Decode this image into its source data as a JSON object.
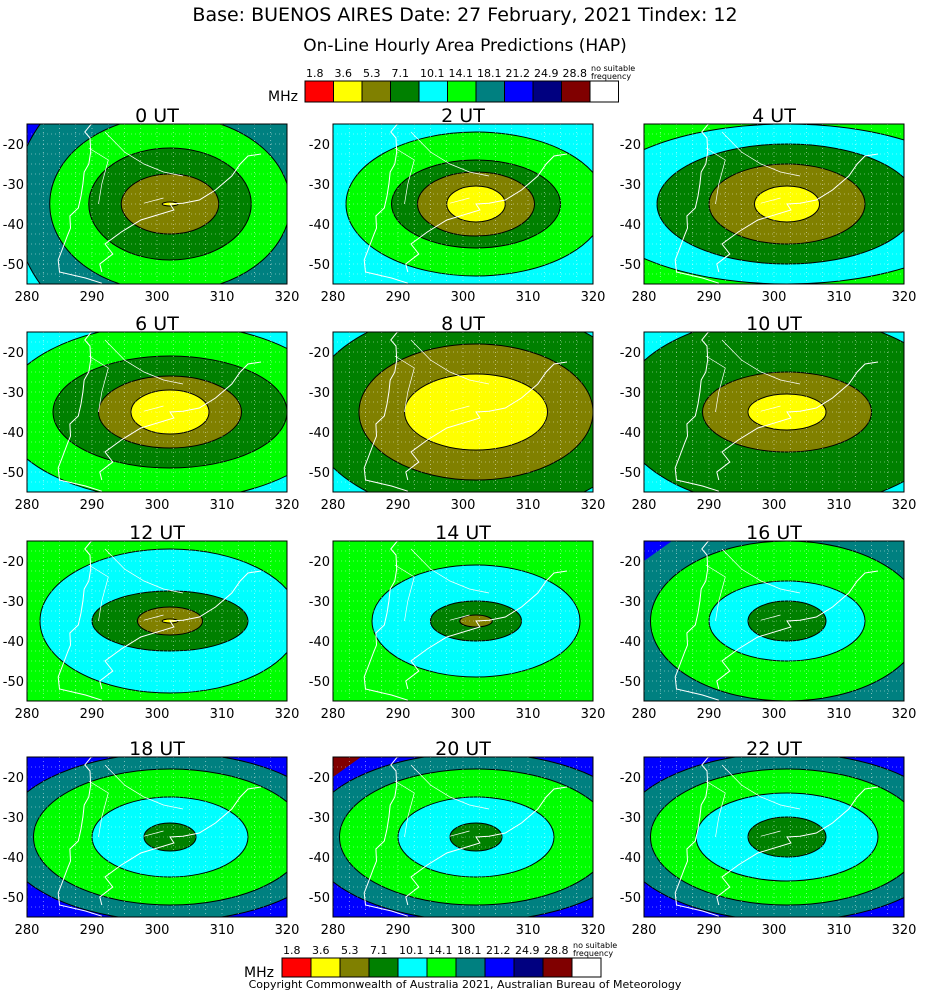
{
  "header": {
    "title": "Base: BUENOS AIRES Date: 27 February, 2021 Tindex: 12",
    "subtitle": "On-Line Hourly Area Predictions (HAP)"
  },
  "legend": {
    "unit": "MHz",
    "values": [
      "1.8",
      "3.6",
      "5.3",
      "7.1",
      "10.1",
      "14.1",
      "18.1",
      "21.2",
      "24.9",
      "28.8"
    ],
    "no_freq_line1": "no suitable",
    "no_freq_line2": "frequency",
    "colors": [
      "#ff0000",
      "#ffff00",
      "#808000",
      "#008000",
      "#00ffff",
      "#00ff00",
      "#008080",
      "#0000ff",
      "#000080",
      "#800000",
      "#ffffff"
    ]
  },
  "footer": {
    "copyright": "Copyright Commonwealth of Australia 2021, Australian Bureau of Meteorology"
  },
  "chart_data": {
    "type": "heatmap",
    "x_ticks": [
      280,
      290,
      300,
      310,
      320
    ],
    "y_ticks": [
      -20,
      -30,
      -40,
      -50
    ],
    "xlim": [
      280,
      320
    ],
    "ylim": [
      -55,
      -15
    ],
    "grid": true,
    "panels": [
      {
        "title": "0 UT",
        "background": "#00ffff",
        "corner": "#0000ff",
        "contours": [
          [
            24,
            36,
            "#008080"
          ],
          [
            18.5,
            22,
            "#00ff00"
          ],
          [
            12.5,
            14,
            "#008000"
          ],
          [
            7.5,
            7.5,
            "#808000"
          ],
          [
            1.2,
            0.5,
            "#ffff00"
          ]
        ]
      },
      {
        "title": "2 UT",
        "background": "#00ffff",
        "corner": null,
        "contours": [
          [
            20,
            18,
            "#00ff00"
          ],
          [
            13,
            11,
            "#008000"
          ],
          [
            9,
            8,
            "#808000"
          ],
          [
            4.5,
            4.5,
            "#ffff00"
          ]
        ]
      },
      {
        "title": "4 UT",
        "background": "#00ff00",
        "corner": null,
        "contours": [
          [
            30,
            20,
            "#00ffff"
          ],
          [
            20,
            15,
            "#008000"
          ],
          [
            12,
            10,
            "#808000"
          ],
          [
            5,
            4.5,
            "#ffff00"
          ]
        ]
      },
      {
        "title": "6 UT",
        "background": "#00ffff",
        "corner": null,
        "contours": [
          [
            26,
            22,
            "#00ff00"
          ],
          [
            18,
            14,
            "#008000"
          ],
          [
            11,
            9,
            "#808000"
          ],
          [
            6,
            5.5,
            "#ffff00"
          ]
        ]
      },
      {
        "title": "8 UT",
        "background": "#00ffff",
        "corner": null,
        "contours": [
          [
            26,
            26,
            "#008000"
          ],
          [
            18,
            17,
            "#808000"
          ],
          [
            11,
            9.5,
            "#ffff00"
          ]
        ]
      },
      {
        "title": "10 UT",
        "background": "#00ffff",
        "corner": null,
        "contours": [
          [
            26,
            24,
            "#008000"
          ],
          [
            13,
            10,
            "#808000"
          ],
          [
            6,
            4.5,
            "#ffff00"
          ]
        ]
      },
      {
        "title": "12 UT",
        "background": "#00ff00",
        "corner": null,
        "contours": [
          [
            20,
            18,
            "#00ffff"
          ],
          [
            12,
            7.5,
            "#008000"
          ],
          [
            5,
            3.5,
            "#808000"
          ],
          [
            1.2,
            0.5,
            "#ffff00"
          ]
        ]
      },
      {
        "title": "14 UT",
        "background": "#00ff00",
        "corner": null,
        "contours": [
          [
            16,
            14,
            "#00ffff"
          ],
          [
            7,
            5,
            "#008000"
          ],
          [
            2.5,
            1.5,
            "#808000"
          ]
        ]
      },
      {
        "title": "16 UT",
        "background": "#008080",
        "corner": "#0000ff",
        "contours": [
          [
            21,
            20,
            "#00ff00"
          ],
          [
            12,
            10,
            "#00ffff"
          ],
          [
            6,
            5,
            "#008000"
          ]
        ]
      },
      {
        "title": "18 UT",
        "background": "#0000ff",
        "corner": null,
        "contours": [
          [
            26,
            21,
            "#008080"
          ],
          [
            21,
            17,
            "#00ff00"
          ],
          [
            12,
            10,
            "#00ffff"
          ],
          [
            4,
            3.5,
            "#008000"
          ]
        ]
      },
      {
        "title": "20 UT",
        "background": "#0000ff",
        "corner": "#800000",
        "contours": [
          [
            26,
            21,
            "#008080"
          ],
          [
            21,
            17,
            "#00ff00"
          ],
          [
            12,
            10,
            "#00ffff"
          ],
          [
            4,
            3.5,
            "#008000"
          ]
        ]
      },
      {
        "title": "22 UT",
        "background": "#0000ff",
        "corner": null,
        "contours": [
          [
            26,
            21,
            "#008080"
          ],
          [
            21,
            17,
            "#00ff00"
          ],
          [
            14,
            11,
            "#00ffff"
          ],
          [
            6,
            5,
            "#008000"
          ]
        ]
      }
    ]
  }
}
